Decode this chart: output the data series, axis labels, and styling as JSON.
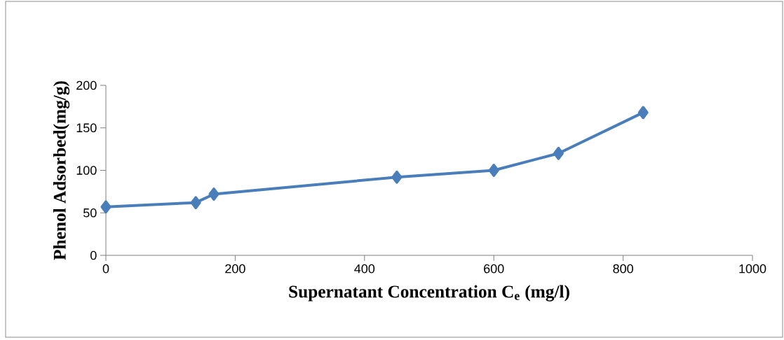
{
  "chart_data": {
    "type": "line",
    "xlabel": "Supernatant Concentration C$_{e}$ (mg/l)",
    "ylabel": "Phenol Adsorbed(mg/g)",
    "x": [
      0,
      139,
      167,
      450,
      600,
      700,
      831
    ],
    "series": [
      {
        "color": "#4a7ebb",
        "values": [
          57,
          62,
          72,
          92,
          100,
          120,
          168
        ]
      }
    ],
    "xlim": [
      0,
      1000
    ],
    "xticks": [
      0,
      200,
      400,
      600,
      800,
      1000
    ],
    "ylim": [
      0,
      200
    ],
    "yticks": [
      0,
      50,
      100,
      150,
      200
    ],
    "grid": false,
    "marker": "diamond",
    "line_style": "solid"
  }
}
